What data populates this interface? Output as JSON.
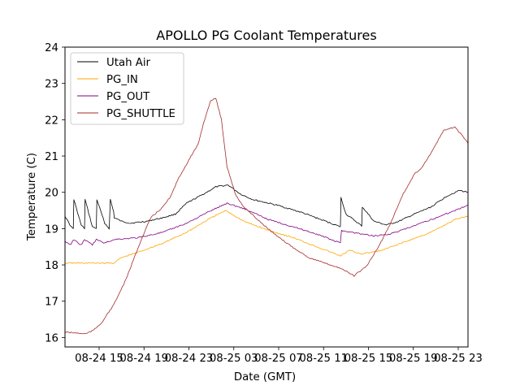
{
  "chart_data": {
    "type": "line",
    "title": "APOLLO PG Coolant Temperatures",
    "xlabel": "Date (GMT)",
    "ylabel": "Temperature (C)",
    "x_units": "hours since 08-24 15:00 GMT",
    "xlim": [
      -3.04,
      32.87
    ],
    "ylim": [
      15.74,
      24
    ],
    "grid": false,
    "legend_position": "top-left",
    "x_ticks": [
      {
        "value": 0,
        "label": "08-24 15"
      },
      {
        "value": 4,
        "label": "08-24 19"
      },
      {
        "value": 8,
        "label": "08-24 23"
      },
      {
        "value": 12,
        "label": "08-25 03"
      },
      {
        "value": 16,
        "label": "08-25 07"
      },
      {
        "value": 20,
        "label": "08-25 11"
      },
      {
        "value": 24,
        "label": "08-25 15"
      },
      {
        "value": 28,
        "label": "08-25 19"
      },
      {
        "value": 32,
        "label": "08-25 23"
      }
    ],
    "y_ticks": [
      {
        "value": 16,
        "label": "16"
      },
      {
        "value": 17,
        "label": "17"
      },
      {
        "value": 18,
        "label": "18"
      },
      {
        "value": 19,
        "label": "19"
      },
      {
        "value": 20,
        "label": "20"
      },
      {
        "value": 21,
        "label": "21"
      },
      {
        "value": 22,
        "label": "22"
      },
      {
        "value": 23,
        "label": "23"
      },
      {
        "value": 24,
        "label": "24"
      }
    ],
    "series": [
      {
        "name": "Utah Air",
        "color": "#000000",
        "x": [
          -3.04,
          -2.5,
          -2.3,
          -2.25,
          -1.6,
          -1.3,
          -1.25,
          -0.6,
          -0.25,
          -0.2,
          0.5,
          0.9,
          1.0,
          1.3,
          1.35,
          2.0,
          2.8,
          4.2,
          5.7,
          6.8,
          7.8,
          9.3,
          10.4,
          11.5,
          12.6,
          13.7,
          15.8,
          18.0,
          20.2,
          21.5,
          21.55,
          22.0,
          23.3,
          23.4,
          23.45,
          24.5,
          25.6,
          26.7,
          28.1,
          29.6,
          31.0,
          32.1,
          32.87
        ],
        "y": [
          19.35,
          19.05,
          19.0,
          19.8,
          19.1,
          19.0,
          19.8,
          19.05,
          19.0,
          19.8,
          19.15,
          19.0,
          19.8,
          19.45,
          19.3,
          19.2,
          19.15,
          19.2,
          19.3,
          19.4,
          19.7,
          19.95,
          20.15,
          20.2,
          19.95,
          19.8,
          19.65,
          19.45,
          19.2,
          19.05,
          19.85,
          19.4,
          19.1,
          19.05,
          19.6,
          19.2,
          19.1,
          19.2,
          19.4,
          19.6,
          19.9,
          20.05,
          20.0
        ]
      },
      {
        "name": "PG_IN",
        "color": "#ffa500",
        "x": [
          -3.04,
          -1.5,
          0.0,
          1.3,
          2.0,
          3.5,
          5.7,
          7.8,
          10.0,
          11.3,
          12.9,
          15.1,
          17.3,
          19.4,
          21.5,
          22.3,
          23.4,
          25.2,
          27.4,
          29.6,
          31.7,
          32.87
        ],
        "y": [
          18.05,
          18.05,
          18.05,
          18.05,
          18.2,
          18.35,
          18.6,
          18.9,
          19.3,
          19.5,
          19.2,
          18.95,
          18.75,
          18.5,
          18.25,
          18.4,
          18.3,
          18.4,
          18.65,
          18.9,
          19.25,
          19.35
        ]
      },
      {
        "name": "PG_OUT",
        "color": "#800080",
        "x": [
          -3.04,
          -2.5,
          -2.3,
          -1.6,
          -1.3,
          -0.6,
          -0.25,
          0.5,
          1.3,
          3.5,
          5.7,
          7.8,
          10.0,
          11.4,
          12.9,
          15.1,
          17.3,
          19.4,
          21.5,
          21.6,
          23.4,
          24.5,
          25.9,
          27.4,
          29.6,
          31.7,
          32.87
        ],
        "y": [
          18.65,
          18.55,
          18.7,
          18.55,
          18.7,
          18.55,
          18.7,
          18.6,
          18.7,
          18.75,
          18.9,
          19.15,
          19.5,
          19.7,
          19.55,
          19.25,
          19.05,
          18.85,
          18.6,
          18.95,
          18.85,
          18.8,
          18.85,
          19.0,
          19.25,
          19.5,
          19.65
        ]
      },
      {
        "name": "PG_SHUTTLE",
        "color": "#a52a2a",
        "x": [
          -3.04,
          -1.2,
          -0.5,
          0.2,
          1.3,
          2.4,
          3.5,
          4.6,
          5.7,
          6.4,
          7.1,
          8.2,
          8.8,
          9.3,
          9.9,
          10.4,
          10.9,
          11.4,
          12.2,
          12.9,
          14.3,
          15.8,
          17.2,
          18.7,
          20.1,
          21.6,
          22.7,
          23.8,
          24.9,
          25.9,
          27.0,
          28.1,
          28.8,
          29.6,
          30.7,
          31.7,
          32.5,
          32.87
        ],
        "y": [
          16.15,
          16.1,
          16.2,
          16.4,
          16.9,
          17.6,
          18.5,
          19.3,
          19.6,
          19.9,
          20.4,
          21.0,
          21.3,
          21.9,
          22.5,
          22.6,
          22.0,
          20.7,
          19.9,
          19.6,
          19.2,
          18.8,
          18.5,
          18.2,
          18.05,
          17.9,
          17.7,
          17.95,
          18.5,
          19.1,
          19.9,
          20.5,
          20.7,
          21.1,
          21.7,
          21.8,
          21.5,
          21.35
        ]
      }
    ]
  }
}
